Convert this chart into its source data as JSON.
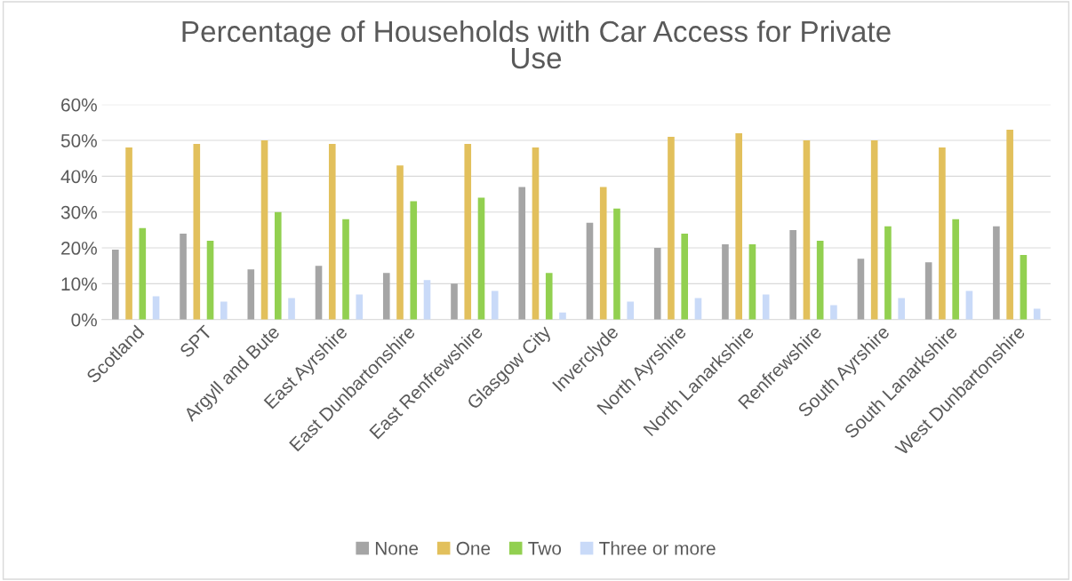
{
  "chart_data": {
    "type": "bar",
    "title": "Percentage of Households with Car Access for Private\nUse",
    "categories": [
      "Scotland",
      "SPT",
      "Argyll and Bute",
      "East Ayrshire",
      "East Dunbartonshire",
      "East Renfrewshire",
      "Glasgow City",
      "Inverclyde",
      "North Ayrshire",
      "North Lanarkshire",
      "Renfrewshire",
      "South Ayrshire",
      "South Lanarkshire",
      "West Dunbartonshire"
    ],
    "series": [
      {
        "name": "None",
        "color": "#a5a5a5",
        "values": [
          19.5,
          24,
          14,
          15,
          13,
          10,
          37,
          27,
          20,
          21,
          25,
          17,
          16,
          26
        ]
      },
      {
        "name": "One",
        "color": "#e2c05c",
        "values": [
          48,
          49,
          50,
          49,
          43,
          49,
          48,
          37,
          51,
          52,
          50,
          50,
          48,
          53
        ]
      },
      {
        "name": "Two",
        "color": "#92d050",
        "values": [
          25.5,
          22,
          30,
          28,
          33,
          34,
          13,
          31,
          24,
          21,
          22,
          26,
          28,
          18
        ]
      },
      {
        "name": "Three or more",
        "color": "#c9daf8",
        "values": [
          6.5,
          5,
          6,
          7,
          11,
          8,
          2,
          5,
          6,
          7,
          4,
          6,
          8,
          3
        ]
      }
    ],
    "ylim": [
      0,
      60
    ],
    "yticks": [
      {
        "value": 0,
        "label": "0%"
      },
      {
        "value": 10,
        "label": "10%"
      },
      {
        "value": 20,
        "label": "20%"
      },
      {
        "value": 30,
        "label": "30%"
      },
      {
        "value": 40,
        "label": "40%"
      },
      {
        "value": 50,
        "label": "50%"
      },
      {
        "value": 60,
        "label": "60%"
      }
    ],
    "grid": "y",
    "legend": "bottom"
  }
}
